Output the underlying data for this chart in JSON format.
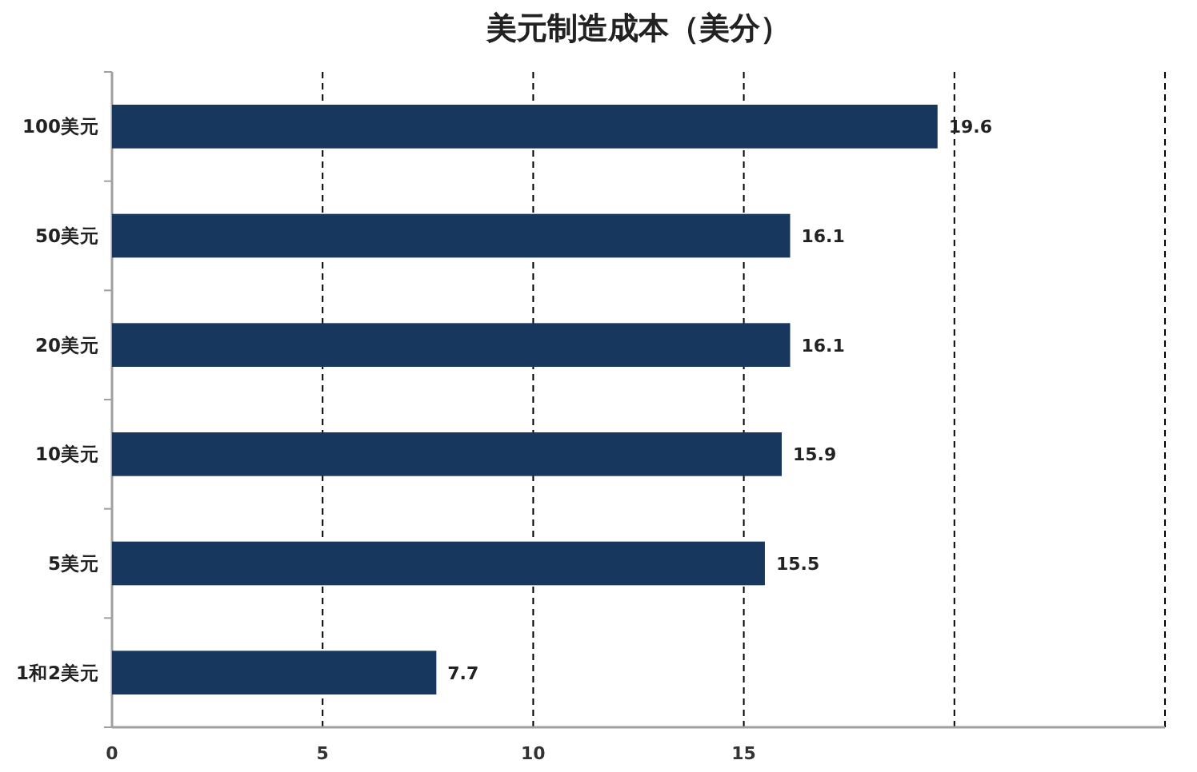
{
  "chart_data": {
    "type": "bar",
    "orientation": "horizontal",
    "title": "美元制造成本（美分）",
    "categories": [
      "100美元",
      "50美元",
      "20美元",
      "10美元",
      "5美元",
      "1和2美元"
    ],
    "values": [
      19.6,
      16.1,
      16.1,
      15.9,
      15.5,
      7.7
    ],
    "color": "#17375e",
    "xlim": [
      0,
      25
    ],
    "xticks": [
      0,
      5,
      10,
      15,
      {
        "value": 20,
        "label": null
      },
      {
        "value": 25,
        "label": null
      }
    ],
    "grid": "x",
    "data_labels": true
  }
}
